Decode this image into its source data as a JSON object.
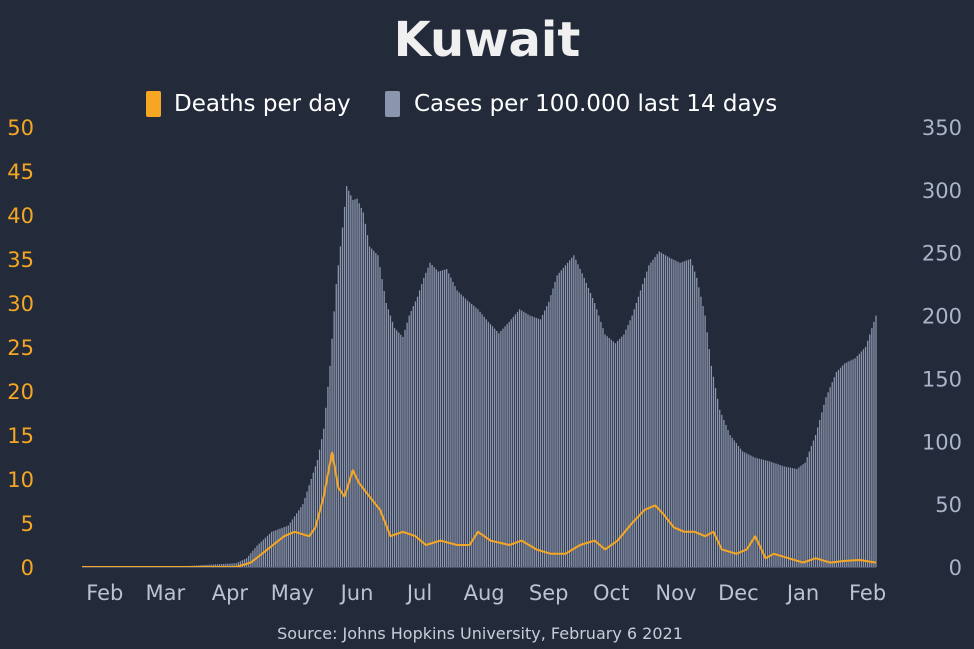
{
  "colors": {
    "background": "#232b3b",
    "deaths": "#f5a623",
    "cases": "#8b95ad",
    "text": "#ffffff",
    "month_label": "#bcc2ce",
    "left_axis": "#f5a623",
    "right_axis": "#aab4c8"
  },
  "chart_data": {
    "type": "bar",
    "title": "Kuwait",
    "legend": {
      "placement": "top-center",
      "entries": [
        "Deaths per day",
        "Cases per 100.000 last 14 days"
      ]
    },
    "source": "Source: Johns Hopkins University, February 6 2021",
    "x_month_labels": [
      "Feb",
      "Mar",
      "Apr",
      "May",
      "Jun",
      "Jul",
      "Aug",
      "Sep",
      "Oct",
      "Nov",
      "Dec",
      "Jan",
      "Feb"
    ],
    "x_range": [
      "2020-01-22",
      "2021-02-06"
    ],
    "y_left": {
      "label": "",
      "ylim": [
        0,
        50
      ],
      "ticks": [
        0,
        5,
        10,
        15,
        20,
        25,
        30,
        35,
        40,
        45,
        50
      ]
    },
    "y_right": {
      "label": "",
      "ylim": [
        0,
        350
      ],
      "ticks": [
        0,
        50,
        100,
        150,
        200,
        250,
        300,
        350
      ]
    },
    "grid": false,
    "series": [
      {
        "name": "Cases per 100.000 last 14 days",
        "type": "bar",
        "axis": "right",
        "points": [
          [
            "2020-01-22",
            0
          ],
          [
            "2020-02-23",
            0
          ],
          [
            "2020-03-10",
            0.5
          ],
          [
            "2020-03-25",
            2
          ],
          [
            "2020-04-05",
            3
          ],
          [
            "2020-04-10",
            7
          ],
          [
            "2020-04-15",
            17
          ],
          [
            "2020-04-22",
            28
          ],
          [
            "2020-04-30",
            33
          ],
          [
            "2020-05-07",
            50
          ],
          [
            "2020-05-14",
            85
          ],
          [
            "2020-05-17",
            110
          ],
          [
            "2020-05-20",
            160
          ],
          [
            "2020-05-23",
            225
          ],
          [
            "2020-05-26",
            270
          ],
          [
            "2020-05-28",
            303
          ],
          [
            "2020-05-31",
            292
          ],
          [
            "2020-06-02",
            293
          ],
          [
            "2020-06-05",
            282
          ],
          [
            "2020-06-08",
            255
          ],
          [
            "2020-06-12",
            248
          ],
          [
            "2020-06-16",
            210
          ],
          [
            "2020-06-20",
            190
          ],
          [
            "2020-06-24",
            183
          ],
          [
            "2020-06-27",
            200
          ],
          [
            "2020-07-01",
            215
          ],
          [
            "2020-07-04",
            230
          ],
          [
            "2020-07-07",
            242
          ],
          [
            "2020-07-11",
            235
          ],
          [
            "2020-07-15",
            237
          ],
          [
            "2020-07-20",
            220
          ],
          [
            "2020-07-25",
            212
          ],
          [
            "2020-07-30",
            205
          ],
          [
            "2020-08-04",
            195
          ],
          [
            "2020-08-09",
            186
          ],
          [
            "2020-08-14",
            195
          ],
          [
            "2020-08-19",
            205
          ],
          [
            "2020-08-24",
            200
          ],
          [
            "2020-08-29",
            197
          ],
          [
            "2020-09-02",
            211
          ],
          [
            "2020-09-06",
            232
          ],
          [
            "2020-09-10",
            240
          ],
          [
            "2020-09-14",
            248
          ],
          [
            "2020-09-19",
            230
          ],
          [
            "2020-09-24",
            210
          ],
          [
            "2020-09-29",
            185
          ],
          [
            "2020-10-04",
            178
          ],
          [
            "2020-10-08",
            185
          ],
          [
            "2020-10-12",
            200
          ],
          [
            "2020-10-16",
            220
          ],
          [
            "2020-10-20",
            240
          ],
          [
            "2020-10-25",
            251
          ],
          [
            "2020-10-30",
            246
          ],
          [
            "2020-11-04",
            242
          ],
          [
            "2020-11-09",
            245
          ],
          [
            "2020-11-12",
            230
          ],
          [
            "2020-11-16",
            200
          ],
          [
            "2020-11-19",
            160
          ],
          [
            "2020-11-23",
            125
          ],
          [
            "2020-11-28",
            105
          ],
          [
            "2020-12-04",
            92
          ],
          [
            "2020-12-10",
            87
          ],
          [
            "2020-12-17",
            84
          ],
          [
            "2020-12-24",
            80
          ],
          [
            "2020-12-30",
            78
          ],
          [
            "2021-01-03",
            83
          ],
          [
            "2021-01-08",
            105
          ],
          [
            "2021-01-13",
            135
          ],
          [
            "2021-01-18",
            155
          ],
          [
            "2021-01-22",
            162
          ],
          [
            "2021-01-27",
            166
          ],
          [
            "2021-02-01",
            175
          ],
          [
            "2021-02-06",
            200
          ]
        ]
      },
      {
        "name": "Deaths per day",
        "type": "line",
        "axis": "left",
        "points": [
          [
            "2020-01-22",
            0
          ],
          [
            "2020-04-05",
            0
          ],
          [
            "2020-04-12",
            0.5
          ],
          [
            "2020-04-20",
            2
          ],
          [
            "2020-04-28",
            3.5
          ],
          [
            "2020-05-03",
            4
          ],
          [
            "2020-05-10",
            3.5
          ],
          [
            "2020-05-13",
            4.5
          ],
          [
            "2020-05-17",
            8
          ],
          [
            "2020-05-21",
            13
          ],
          [
            "2020-05-24",
            9
          ],
          [
            "2020-05-27",
            8
          ],
          [
            "2020-05-31",
            11
          ],
          [
            "2020-06-03",
            9.5
          ],
          [
            "2020-06-08",
            8
          ],
          [
            "2020-06-13",
            6.5
          ],
          [
            "2020-06-18",
            3.5
          ],
          [
            "2020-06-24",
            4
          ],
          [
            "2020-06-30",
            3.5
          ],
          [
            "2020-07-05",
            2.5
          ],
          [
            "2020-07-12",
            3
          ],
          [
            "2020-07-20",
            2.5
          ],
          [
            "2020-07-26",
            2.5
          ],
          [
            "2020-07-30",
            4
          ],
          [
            "2020-08-05",
            3
          ],
          [
            "2020-08-14",
            2.5
          ],
          [
            "2020-08-20",
            3
          ],
          [
            "2020-08-27",
            2
          ],
          [
            "2020-09-03",
            1.5
          ],
          [
            "2020-09-10",
            1.5
          ],
          [
            "2020-09-17",
            2.5
          ],
          [
            "2020-09-24",
            3
          ],
          [
            "2020-09-29",
            2
          ],
          [
            "2020-10-05",
            3
          ],
          [
            "2020-10-12",
            5
          ],
          [
            "2020-10-18",
            6.5
          ],
          [
            "2020-10-23",
            7
          ],
          [
            "2020-10-27",
            6
          ],
          [
            "2020-11-01",
            4.5
          ],
          [
            "2020-11-06",
            4
          ],
          [
            "2020-11-11",
            4
          ],
          [
            "2020-11-16",
            3.5
          ],
          [
            "2020-11-20",
            4
          ],
          [
            "2020-11-24",
            2
          ],
          [
            "2020-12-01",
            1.5
          ],
          [
            "2020-12-06",
            2
          ],
          [
            "2020-12-10",
            3.5
          ],
          [
            "2020-12-15",
            1
          ],
          [
            "2020-12-19",
            1.5
          ],
          [
            "2020-12-26",
            1
          ],
          [
            "2021-01-02",
            0.5
          ],
          [
            "2021-01-08",
            1
          ],
          [
            "2021-01-15",
            0.5
          ],
          [
            "2021-01-22",
            0.7
          ],
          [
            "2021-01-29",
            0.8
          ],
          [
            "2021-02-06",
            0.5
          ]
        ]
      }
    ]
  }
}
